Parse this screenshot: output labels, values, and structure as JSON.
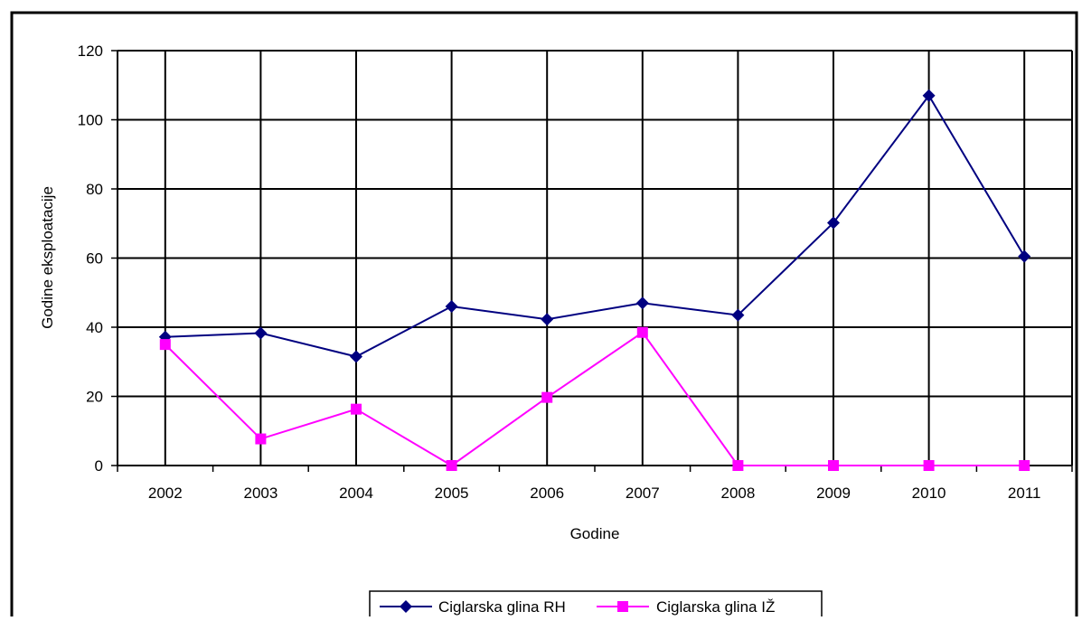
{
  "chart_data": {
    "type": "line",
    "xlabel": "Godine",
    "ylabel": "Godine eksploatacije",
    "categories": [
      "2002",
      "2003",
      "2004",
      "2005",
      "2006",
      "2007",
      "2008",
      "2009",
      "2010",
      "2011"
    ],
    "ylim": [
      0,
      120
    ],
    "yticks": [
      0,
      20,
      40,
      60,
      80,
      100,
      120
    ],
    "grid": true,
    "legend_position": "bottom",
    "series": [
      {
        "name": "Ciglarska glina RH",
        "color": "#000080",
        "marker": "diamond",
        "values": [
          37.2,
          38.3,
          31.5,
          46.0,
          42.3,
          47.0,
          43.5,
          70.2,
          107.0,
          60.5
        ]
      },
      {
        "name": "Ciglarska glina IŽ",
        "color": "#ff00ff",
        "marker": "square",
        "values": [
          35.0,
          7.7,
          16.3,
          0.0,
          19.7,
          38.5,
          0.0,
          0.0,
          0.0,
          0.0
        ]
      }
    ]
  }
}
